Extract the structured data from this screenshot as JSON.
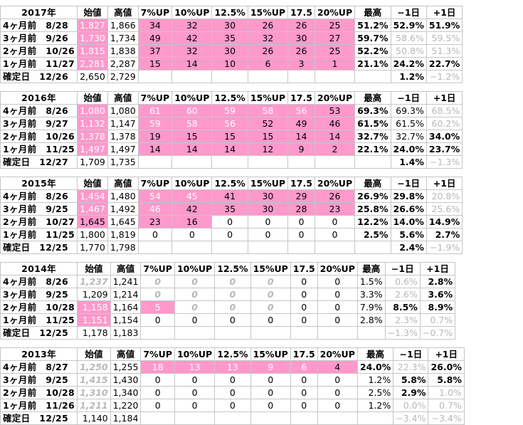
{
  "headers": [
    "始値",
    "高値",
    "7%UP",
    "10%UP",
    "12.5%",
    "15%UP",
    "17.5",
    "20%UP",
    "最高",
    "−1日",
    "+1日"
  ],
  "blocks": [
    {
      "year": "2017年",
      "rows": [
        {
          "label": "4ヶ月前　8/28",
          "cells": [
            "1,827",
            "1,866",
            "34",
            "32",
            "30",
            "26",
            "26",
            "25",
            "51.2%",
            "52.9%",
            "51.9%"
          ],
          "style": [
            "pink pw",
            "",
            "pink cen",
            "pink cen",
            "pink cen",
            "pink cen",
            "pink cen",
            "pink cen",
            "b",
            "b",
            "b"
          ]
        },
        {
          "label": "3ヶ月前　9/26",
          "cells": [
            "1,730",
            "1,734",
            "49",
            "42",
            "35",
            "32",
            "30",
            "27",
            "59.7%",
            "58.6%",
            "59.5%"
          ],
          "style": [
            "pink pw",
            "",
            "pink cen",
            "pink cen",
            "pink cen",
            "pink cen",
            "pink cen",
            "pink cen",
            "b",
            "gr",
            "gr"
          ]
        },
        {
          "label": "2ヶ月前　10/26",
          "cells": [
            "1,815",
            "1,838",
            "37",
            "32",
            "30",
            "26",
            "26",
            "25",
            "52.2%",
            "50.8%",
            "51.3%"
          ],
          "style": [
            "pink pw",
            "",
            "pink cen",
            "pink cen",
            "pink cen",
            "pink cen",
            "pink cen",
            "pink cen",
            "b",
            "gr",
            "gr"
          ]
        },
        {
          "label": "1ヶ月前　11/27",
          "cells": [
            "2,281",
            "2,287",
            "15",
            "14",
            "10",
            "6",
            "3",
            "1",
            "21.1%",
            "24.2%",
            "22.7%"
          ],
          "style": [
            "pink pw",
            "",
            "pink cen",
            "pink cen",
            "pink cen",
            "pink cen",
            "pink cen",
            "pink cen",
            "b",
            "b",
            "b"
          ]
        },
        {
          "label": "確定日　12/26",
          "cells": [
            "2,650",
            "2,729",
            "",
            "",
            "",
            "",
            "",
            "",
            "",
            "1.2%",
            "−1.2%"
          ],
          "style": [
            "",
            "",
            "empty",
            "empty",
            "empty",
            "empty",
            "empty",
            "empty",
            "empty",
            "b",
            "gr"
          ]
        }
      ]
    },
    {
      "year": "2016年",
      "rows": [
        {
          "label": "4ヶ月前　8/26",
          "cells": [
            "1,080",
            "1,080",
            "61",
            "60",
            "59",
            "58",
            "56",
            "53",
            "69.3%",
            "69.3%",
            "68.5%"
          ],
          "style": [
            "pink pw",
            "",
            "pink pw cen",
            "pink pw cen",
            "pink pw cen",
            "pink pw cen",
            "pink pw cen",
            "pink cen",
            "b",
            "",
            "gr"
          ]
        },
        {
          "label": "3ヶ月前　9/27",
          "cells": [
            "1,132",
            "1,147",
            "59",
            "58",
            "56",
            "52",
            "49",
            "46",
            "61.5%",
            "61.5%",
            "60.2%"
          ],
          "style": [
            "pink pw",
            "",
            "pink pw cen",
            "pink pw cen",
            "pink pw cen",
            "pink cen",
            "pink cen",
            "pink cen",
            "b",
            "",
            "gr"
          ]
        },
        {
          "label": "2ヶ月前　10/26",
          "cells": [
            "1,378",
            "1,378",
            "19",
            "15",
            "15",
            "15",
            "14",
            "14",
            "32.7%",
            "32.7%",
            "34.0%"
          ],
          "style": [
            "pink pw",
            "",
            "pink cen",
            "pink cen",
            "pink cen",
            "pink cen",
            "pink cen",
            "pink cen",
            "b",
            "",
            "b"
          ]
        },
        {
          "label": "1ヶ月前　11/25",
          "cells": [
            "1,497",
            "1,497",
            "14",
            "14",
            "14",
            "12",
            "9",
            "2",
            "22.1%",
            "24.0%",
            "23.7%"
          ],
          "style": [
            "pink pw",
            "",
            "pink cen",
            "pink cen",
            "pink cen",
            "pink cen",
            "pink cen",
            "pink cen",
            "b",
            "b",
            "b"
          ]
        },
        {
          "label": "確定日　12/27",
          "cells": [
            "1,709",
            "1,735",
            "",
            "",
            "",
            "",
            "",
            "",
            "",
            "1.4%",
            "−1.3%"
          ],
          "style": [
            "",
            "",
            "empty",
            "empty",
            "empty",
            "empty",
            "empty",
            "empty",
            "empty",
            "b",
            "gr"
          ]
        }
      ]
    },
    {
      "year": "2015年",
      "rows": [
        {
          "label": "4ヶ月前　8/26",
          "cells": [
            "1,454",
            "1,480",
            "54",
            "45",
            "41",
            "30",
            "29",
            "26",
            "26.9%",
            "29.8%",
            "20.8%"
          ],
          "style": [
            "pink pw",
            "",
            "pink pw cen",
            "pink pw cen",
            "pink cen",
            "pink cen",
            "pink cen",
            "pink cen",
            "b",
            "b",
            "gr"
          ]
        },
        {
          "label": "3ヶ月前　9/25",
          "cells": [
            "1,467",
            "1,492",
            "46",
            "42",
            "35",
            "30",
            "28",
            "23",
            "25.8%",
            "26.6%",
            "25.6%"
          ],
          "style": [
            "pink pw",
            "",
            "pink pw cen",
            "pink cen",
            "pink cen",
            "pink cen",
            "pink cen",
            "pink cen",
            "b",
            "b",
            "gr"
          ]
        },
        {
          "label": "2ヶ月前　10/27",
          "cells": [
            "1,645",
            "1,645",
            "23",
            "16",
            "0",
            "0",
            "0",
            "0",
            "12.2%",
            "14.0%",
            "14.9%"
          ],
          "style": [
            "pink",
            "",
            "pink cen",
            "pink cen",
            "cen",
            "cen",
            "cen",
            "cen",
            "b",
            "b",
            "b"
          ]
        },
        {
          "label": "1ヶ月前　11/25",
          "cells": [
            "1,800",
            "1,819",
            "0",
            "0",
            "0",
            "0",
            "0",
            "0",
            "2.5%",
            "5.6%",
            "2.7%"
          ],
          "style": [
            "",
            "",
            "cen",
            "cen",
            "cen",
            "cen",
            "cen",
            "cen",
            "b",
            "b",
            "b"
          ]
        },
        {
          "label": "確定日　12/25",
          "cells": [
            "1,770",
            "1,798",
            "",
            "",
            "",
            "",
            "",
            "",
            "",
            "2.4%",
            "−1.9%"
          ],
          "style": [
            "",
            "",
            "empty",
            "empty",
            "empty",
            "empty",
            "empty",
            "empty",
            "empty",
            "b",
            "gr"
          ]
        }
      ]
    },
    {
      "year": "2014年",
      "rows": [
        {
          "label": "4ヶ月前　8/26",
          "cells": [
            "1,237",
            "1,241",
            "0",
            "0",
            "0",
            "0",
            "0",
            "0",
            "1.5%",
            "0.6%",
            "2.8%"
          ],
          "style": [
            "it",
            "",
            "it cen",
            "it cen",
            "it cen",
            "it cen",
            "cen",
            "cen",
            "",
            "gr",
            "b"
          ]
        },
        {
          "label": "3ヶ月前　9/25",
          "cells": [
            "1,209",
            "1,214",
            "0",
            "0",
            "0",
            "0",
            "0",
            "0",
            "3.3%",
            "2.6%",
            "3.6%"
          ],
          "style": [
            "",
            "",
            "it cen",
            "it cen",
            "it cen",
            "it cen",
            "cen",
            "cen",
            "",
            "gr",
            "b"
          ]
        },
        {
          "label": "2ヶ月前　10/28",
          "cells": [
            "1,158",
            "1,164",
            "5",
            "0",
            "0",
            "0",
            "0",
            "0",
            "7.9%",
            "8.5%",
            "8.9%"
          ],
          "style": [
            "pink pw",
            "",
            "pink pw cen",
            "it cen",
            "it cen",
            "it cen",
            "cen",
            "cen",
            "",
            "b",
            "b"
          ]
        },
        {
          "label": "1ヶ月前　11/25",
          "cells": [
            "1,151",
            "1,154",
            "0",
            "0",
            "0",
            "0",
            "0",
            "0",
            "2.8%",
            "2.3%",
            "0.7%"
          ],
          "style": [
            "pink pw",
            "",
            "cen",
            "cen",
            "cen",
            "cen",
            "cen",
            "cen",
            "",
            "gr",
            "gr"
          ]
        },
        {
          "label": "確定日　12/25",
          "cells": [
            "1,178",
            "1,183",
            "",
            "",
            "",
            "",
            "",
            "",
            "",
            "−1.3%",
            "−0.7%"
          ],
          "style": [
            "",
            "",
            "empty",
            "empty",
            "empty",
            "empty",
            "empty",
            "empty",
            "empty",
            "gr",
            "gr"
          ]
        }
      ]
    },
    {
      "year": "2013年",
      "rows": [
        {
          "label": "4ヶ月前　8/27",
          "cells": [
            "1,250",
            "1,255",
            "18",
            "13",
            "13",
            "9",
            "6",
            "4",
            "24.0%",
            "22.3%",
            "26.0%"
          ],
          "style": [
            "it",
            "",
            "pink pw cen",
            "pink pw cen",
            "pink pw cen",
            "pink pw cen",
            "pink pw cen",
            "pink cen",
            "b",
            "gr",
            "b"
          ]
        },
        {
          "label": "3ヶ月前　9/25",
          "cells": [
            "1,415",
            "1,430",
            "0",
            "0",
            "0",
            "0",
            "0",
            "0",
            "1.2%",
            "5.8%",
            "5.8%"
          ],
          "style": [
            "it",
            "",
            "cen",
            "cen",
            "cen",
            "cen",
            "cen",
            "cen",
            "",
            "b",
            "b"
          ]
        },
        {
          "label": "2ヶ月前　10/28",
          "cells": [
            "1,310",
            "1,340",
            "0",
            "0",
            "0",
            "0",
            "0",
            "0",
            "2.5%",
            "2.9%",
            "1.0%"
          ],
          "style": [
            "it",
            "",
            "cen",
            "cen",
            "cen",
            "cen",
            "cen",
            "cen",
            "",
            "b",
            "gr"
          ]
        },
        {
          "label": "1ヶ月前　11/26",
          "cells": [
            "1,211",
            "1,220",
            "0",
            "0",
            "0",
            "0",
            "0",
            "0",
            "1.2%",
            "0.0%",
            "0.7%"
          ],
          "style": [
            "it",
            "",
            "cen",
            "cen",
            "cen",
            "cen",
            "cen",
            "cen",
            "",
            "gr",
            "gr"
          ]
        },
        {
          "label": "確定日　12/25",
          "cells": [
            "1,140",
            "1,184",
            "",
            "",
            "",
            "",
            "",
            "",
            "",
            "−3.4%",
            "−3.4%"
          ],
          "style": [
            "",
            "",
            "empty",
            "empty",
            "empty",
            "empty",
            "empty",
            "empty",
            "empty",
            "gr",
            "gr"
          ]
        }
      ]
    }
  ]
}
